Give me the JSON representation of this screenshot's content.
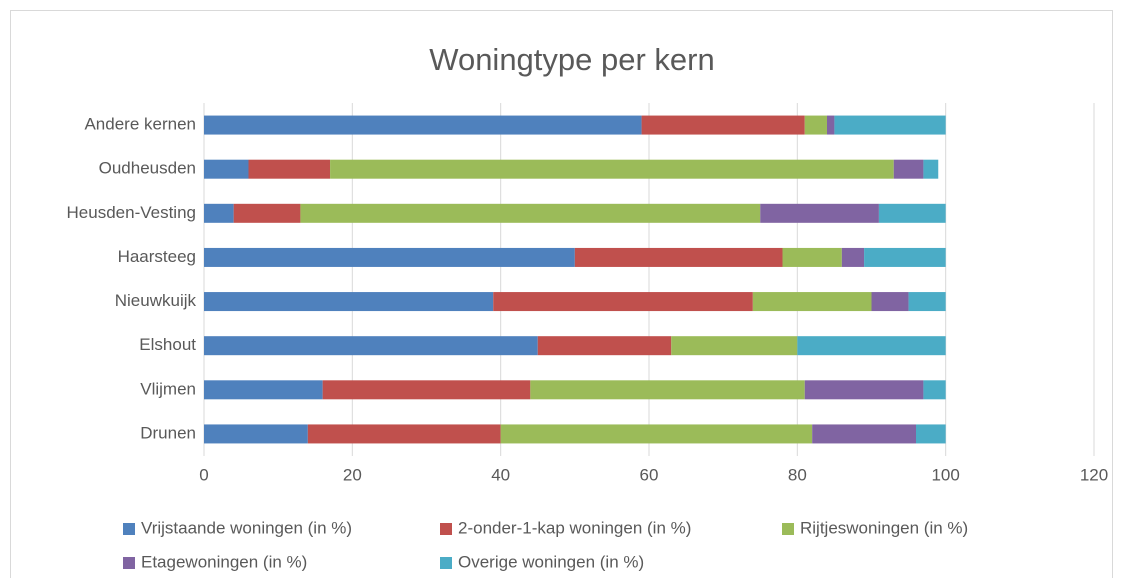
{
  "chart_data": {
    "type": "stacked-barh",
    "title": "Woningtype per kern",
    "categories": [
      "Andere kernen",
      "Oudheusden",
      "Heusden-Vesting",
      "Haarsteeg",
      "Nieuwkuijk",
      "Elshout",
      "Vlijmen",
      "Drunen"
    ],
    "series": [
      {
        "name": "Vrijstaande woningen (in %)",
        "color": "#4f81bd",
        "values": [
          59,
          6,
          4,
          50,
          39,
          45,
          16,
          14
        ]
      },
      {
        "name": "2-onder-1-kap woningen (in %)",
        "color": "#c0504d",
        "values": [
          22,
          11,
          9,
          28,
          35,
          18,
          28,
          26
        ]
      },
      {
        "name": "Rijtjeswoningen (in %)",
        "color": "#9bbb59",
        "values": [
          3,
          76,
          62,
          8,
          16,
          17,
          37,
          42
        ]
      },
      {
        "name": "Etagewoningen (in %)",
        "color": "#8064a2",
        "values": [
          1,
          4,
          16,
          3,
          5,
          0,
          16,
          14
        ]
      },
      {
        "name": "Overige woningen (in %)",
        "color": "#4bacc6",
        "values": [
          15,
          2,
          9,
          11,
          5,
          20,
          3,
          4
        ]
      }
    ],
    "xlim": [
      0,
      120
    ],
    "xticks": [
      0,
      20,
      40,
      60,
      80,
      100,
      120
    ],
    "grid": true,
    "legend": "bottom"
  }
}
